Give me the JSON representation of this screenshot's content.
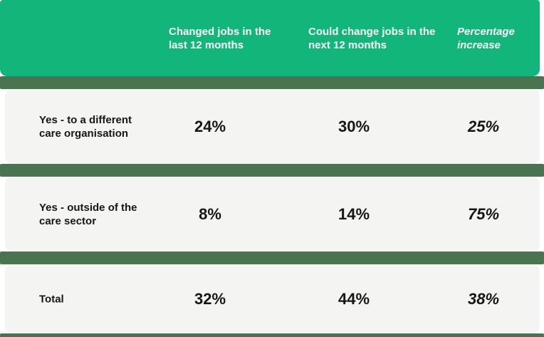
{
  "colors": {
    "brand_green": "#12b57a",
    "dark_green": "#4a7350",
    "row_bg": "#f4f4f2",
    "text_dark": "#161616",
    "text_light": "#ffffff"
  },
  "table": {
    "header": {
      "col2_line1": "Changed jobs in the",
      "col2_line2": "last 12 months",
      "col3_line1": "Could change jobs in the",
      "col3_line2": "next 12 months",
      "col4_line1": "Percentage",
      "col4_line2": "increase"
    },
    "rows": [
      {
        "label_line1": "Yes - to a different",
        "label_line2": "care organisation",
        "changed": "24%",
        "could_change": "30%",
        "increase": "25%"
      },
      {
        "label_line1": "Yes - outside of the",
        "label_line2": "care sector",
        "changed": "8%",
        "could_change": "14%",
        "increase": "75%"
      },
      {
        "label_line1": "Total",
        "label_line2": "",
        "changed": "32%",
        "could_change": "44%",
        "increase": "38%"
      }
    ]
  },
  "chart_data": {
    "type": "table",
    "columns": [
      "",
      "Changed jobs in the last 12 months",
      "Could change jobs in the next 12 months",
      "Percentage increase"
    ],
    "rows": [
      [
        "Yes - to a different care organisation",
        "24%",
        "30%",
        "25%"
      ],
      [
        "Yes - outside of the care sector",
        "8%",
        "14%",
        "75%"
      ],
      [
        "Total",
        "32%",
        "44%",
        "38%"
      ]
    ],
    "notes": "Header band bright green with white bold text; 'Percentage increase' column italic; rows are light gray cards separated by dark sage-green bars"
  }
}
